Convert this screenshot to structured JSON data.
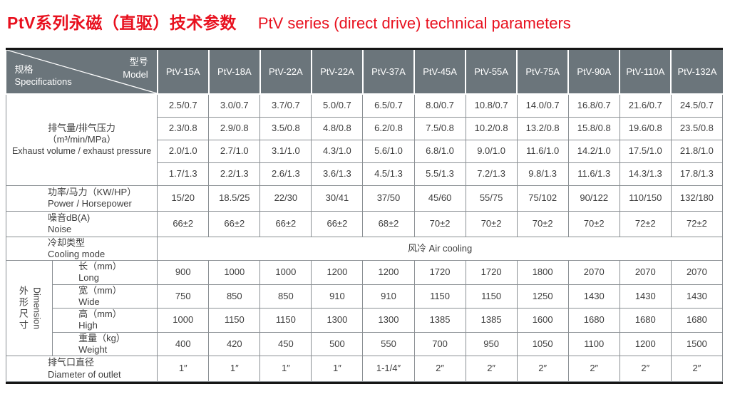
{
  "page_title": {
    "zh": "PtV系列永磁（直驱）技术参数",
    "en": "PtV series (direct drive) technical parameters"
  },
  "colors": {
    "title_red": "#e8101e",
    "header_bg": "#6b757b",
    "grid_line": "#8a8f93",
    "outer_rule": "#161616",
    "body_text": "#3d3d3d",
    "header_text": "#ffffff"
  },
  "table": {
    "corner": {
      "model_zh": "型号",
      "model_en": "Model",
      "spec_zh": "规格",
      "spec_en": "Specifications"
    },
    "models": [
      "PtV-15A",
      "PtV-18A",
      "PtV-22A",
      "PtV-22A",
      "PtV-37A",
      "PtV-45A",
      "PtV-55A",
      "PtV-75A",
      "PtV-90A",
      "PtV-110A",
      "PtV-132A"
    ],
    "sections": [
      {
        "type": "multirow",
        "label_lines": [
          "排气量/排气压力",
          "（m³/min/MPa）",
          "Exhaust volume / exhaust pressure"
        ],
        "rows": [
          [
            "2.5/0.7",
            "3.0/0.7",
            "3.7/0.7",
            "5.0/0.7",
            "6.5/0.7",
            "8.0/0.7",
            "10.8/0.7",
            "14.0/0.7",
            "16.8/0.7",
            "21.6/0.7",
            "24.5/0.7"
          ],
          [
            "2.3/0.8",
            "2.9/0.8",
            "3.5/0.8",
            "4.8/0.8",
            "6.2/0.8",
            "7.5/0.8",
            "10.2/0.8",
            "13.2/0.8",
            "15.8/0.8",
            "19.6/0.8",
            "23.5/0.8"
          ],
          [
            "2.0/1.0",
            "2.7/1.0",
            "3.1/1.0",
            "4.3/1.0",
            "5.6/1.0",
            "6.8/1.0",
            "9.0/1.0",
            "11.6/1.0",
            "14.2/1.0",
            "17.5/1.0",
            "21.8/1.0"
          ],
          [
            "1.7/1.3",
            "2.2/1.3",
            "2.6/1.3",
            "3.6/1.3",
            "4.5/1.3",
            "5.5/1.3",
            "7.2/1.3",
            "9.8/1.3",
            "11.6/1.3",
            "14.3/1.3",
            "17.8/1.3"
          ]
        ]
      },
      {
        "type": "simple",
        "label_zh": "功率/马力（KW/HP）",
        "label_en": "Power / Horsepower",
        "values": [
          "15/20",
          "18.5/25",
          "22/30",
          "30/41",
          "37/50",
          "45/60",
          "55/75",
          "75/102",
          "90/122",
          "110/150",
          "132/180"
        ]
      },
      {
        "type": "simple",
        "label_zh": "噪音dB(A)",
        "label_en": "Noise",
        "values": [
          "66±2",
          "66±2",
          "66±2",
          "66±2",
          "68±2",
          "70±2",
          "70±2",
          "70±2",
          "70±2",
          "72±2",
          "72±2"
        ]
      },
      {
        "type": "span",
        "label_zh": "冷却类型",
        "label_en": "Cooling mode",
        "value": "风冷   Air cooling"
      },
      {
        "type": "group",
        "group_zh": "外形尺寸",
        "group_en": "Dimension",
        "rows": [
          {
            "zh": "长（mm）",
            "en": "Long",
            "values": [
              "900",
              "1000",
              "1000",
              "1200",
              "1200",
              "1720",
              "1720",
              "1800",
              "2070",
              "2070",
              "2070"
            ]
          },
          {
            "zh": "宽（mm）",
            "en": "Wide",
            "values": [
              "750",
              "850",
              "850",
              "910",
              "910",
              "1150",
              "1150",
              "1250",
              "1430",
              "1430",
              "1430"
            ]
          },
          {
            "zh": "高（mm）",
            "en": "High",
            "values": [
              "1000",
              "1150",
              "1150",
              "1300",
              "1300",
              "1385",
              "1385",
              "1600",
              "1680",
              "1680",
              "1680"
            ]
          },
          {
            "zh": "重量（kg）",
            "en": "Weight",
            "values": [
              "400",
              "420",
              "450",
              "500",
              "550",
              "700",
              "950",
              "1050",
              "1100",
              "1200",
              "1500"
            ]
          }
        ]
      },
      {
        "type": "simple",
        "label_zh": "排气口直径",
        "label_en": "Diameter of outlet",
        "values": [
          "1″",
          "1″",
          "1″",
          "1″",
          "1-1/4″",
          "2″",
          "2″",
          "2″",
          "2″",
          "2″",
          "2″"
        ]
      }
    ]
  }
}
